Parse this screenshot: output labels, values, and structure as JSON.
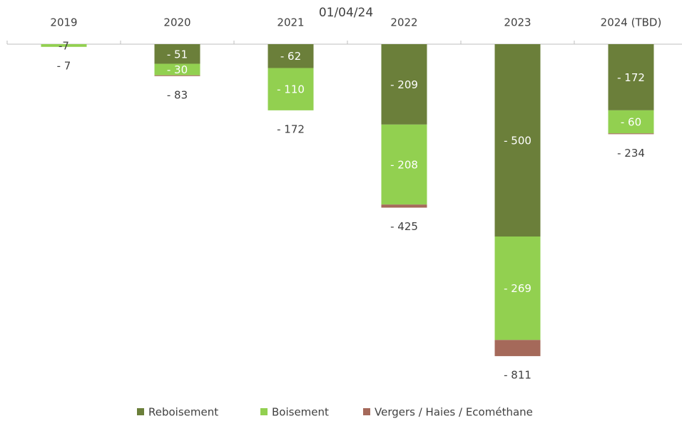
{
  "chart_data": {
    "type": "stacked-bar",
    "title": "01/04/24",
    "categories": [
      "2019",
      "2020",
      "2021",
      "2022",
      "2023",
      "2024 (TBD)"
    ],
    "series": [
      {
        "name": "Reboisement",
        "color": "#6b7f3a",
        "values": [
          null,
          -51,
          -62,
          -209,
          -500,
          -172
        ],
        "value_labels": [
          null,
          "- 51",
          "- 62",
          "- 209",
          "- 500",
          "- 172"
        ]
      },
      {
        "name": "Boisement",
        "color": "#92d050",
        "values": [
          -7,
          -30,
          -110,
          -208,
          -269,
          -60
        ],
        "value_labels": [
          "-7",
          "- 30",
          "- 110",
          "- 208",
          "- 269",
          "- 60"
        ]
      },
      {
        "name": "Vergers / Haies / Ecométhane",
        "color": "#a5695a",
        "values": [
          null,
          -2,
          null,
          -8,
          -42,
          -2
        ]
      }
    ],
    "totals": {
      "values": [
        -7,
        -83,
        -172,
        -425,
        -811,
        -234
      ],
      "value_labels": [
        "- 7",
        "- 83",
        "- 172",
        "- 425",
        "- 811",
        "- 234"
      ]
    },
    "legend": "bottom"
  }
}
